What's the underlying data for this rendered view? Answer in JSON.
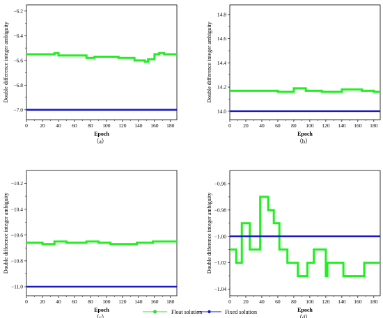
{
  "legend": {
    "float_label": "Float solution",
    "fixed_label": "Fixed solution",
    "float_color": "#22ee22",
    "fixed_color": "#1a1ac8"
  },
  "chart_data": [
    {
      "type": "line",
      "caption": "（a）",
      "xlabel": "Epoch",
      "ylabel": "Double difference integer ambiguity",
      "xlim": [
        0,
        188
      ],
      "ylim": [
        -7.08,
        -6.15
      ],
      "xticks": [
        0,
        20,
        40,
        60,
        80,
        100,
        120,
        140,
        160,
        180
      ],
      "yticks": [
        -7.0,
        -6.8,
        -6.6,
        -6.4,
        -6.2
      ],
      "ytick_labels": [
        "−7.0",
        "−6.8",
        "−6.6",
        "−6.4",
        "−6.2"
      ],
      "series": [
        {
          "name": "Float solution",
          "style": "step",
          "x": [
            0,
            35,
            40,
            75,
            85,
            115,
            135,
            148,
            152,
            160,
            166,
            172,
            188
          ],
          "y": [
            -6.55,
            -6.54,
            -6.56,
            -6.58,
            -6.57,
            -6.58,
            -6.6,
            -6.61,
            -6.59,
            -6.55,
            -6.54,
            -6.55,
            -6.55
          ]
        },
        {
          "name": "Fixed solution",
          "style": "line",
          "x": [
            0,
            188
          ],
          "y": [
            -7.0,
            -7.0
          ]
        }
      ]
    },
    {
      "type": "line",
      "caption": "（b）",
      "xlabel": "Epoch",
      "ylabel": "Double difference integer ambiguity",
      "xlim": [
        0,
        188
      ],
      "ylim": [
        13.93,
        14.88
      ],
      "xticks": [
        0,
        20,
        40,
        60,
        80,
        100,
        120,
        140,
        160,
        180
      ],
      "yticks": [
        14.0,
        14.2,
        14.4,
        14.6,
        14.8
      ],
      "ytick_labels": [
        "14.0",
        "14.2",
        "14.4",
        "14.6",
        "14.8"
      ],
      "series": [
        {
          "name": "Float solution",
          "style": "step",
          "x": [
            0,
            60,
            80,
            95,
            115,
            140,
            165,
            180,
            188
          ],
          "y": [
            14.17,
            14.16,
            14.19,
            14.17,
            14.16,
            14.18,
            14.17,
            14.16,
            14.16
          ]
        },
        {
          "name": "Fixed solution",
          "style": "line",
          "x": [
            0,
            188
          ],
          "y": [
            14.0,
            14.0
          ]
        }
      ]
    },
    {
      "type": "line",
      "caption": "（c）",
      "xlabel": "Epoch",
      "ylabel": "Double difference integer ambiguity",
      "xlim": [
        0,
        188
      ],
      "ylim": [
        -11.07,
        -10.1
      ],
      "xticks": [
        0,
        20,
        40,
        60,
        80,
        100,
        120,
        140,
        160,
        180
      ],
      "yticks": [
        -11.0,
        -10.8,
        -10.6,
        -10.4,
        -10.2
      ],
      "ytick_labels": [
        "−11.0",
        "−10.8",
        "−10.6",
        "−10.4",
        "−10.2"
      ],
      "series": [
        {
          "name": "Float solution",
          "style": "step",
          "x": [
            0,
            20,
            35,
            50,
            75,
            90,
            105,
            125,
            138,
            158,
            188
          ],
          "y": [
            -10.66,
            -10.67,
            -10.65,
            -10.66,
            -10.65,
            -10.66,
            -10.67,
            -10.67,
            -10.66,
            -10.65,
            -10.65
          ]
        },
        {
          "name": "Fixed solution",
          "style": "line",
          "x": [
            0,
            188
          ],
          "y": [
            -11.0,
            -11.0
          ]
        }
      ]
    },
    {
      "type": "line",
      "caption": "（d）",
      "xlabel": "Epoch",
      "ylabel": "Double difference integer ambiguity",
      "xlim": [
        0,
        188
      ],
      "ylim": [
        -1.045,
        -0.95
      ],
      "xticks": [
        0,
        20,
        40,
        60,
        80,
        100,
        120,
        140,
        160,
        180
      ],
      "yticks": [
        -1.04,
        -1.02,
        -1.0,
        -0.98,
        -0.96
      ],
      "ytick_labels": [
        "−1.04",
        "−1.02",
        "−1.00",
        "−0.98",
        "−0.96"
      ],
      "series": [
        {
          "name": "Float solution",
          "style": "step",
          "x": [
            0,
            8,
            15,
            25,
            38,
            48,
            55,
            62,
            72,
            85,
            97,
            105,
            120,
            122,
            142,
            168,
            188
          ],
          "y": [
            -1.01,
            -1.02,
            -0.99,
            -1.01,
            -0.97,
            -0.98,
            -0.99,
            -1.01,
            -1.02,
            -1.03,
            -1.02,
            -1.01,
            -1.03,
            -1.02,
            -1.03,
            -1.02,
            -1.02
          ]
        },
        {
          "name": "Fixed solution",
          "style": "line",
          "x": [
            0,
            188
          ],
          "y": [
            -1.0,
            -1.0
          ]
        }
      ]
    }
  ]
}
